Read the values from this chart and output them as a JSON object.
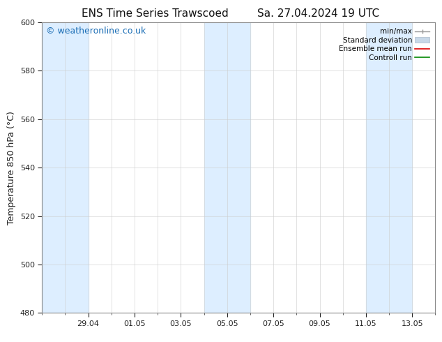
{
  "title_left": "ENS Time Series Trawscoed",
  "title_right": "Sa. 27.04.2024 19 UTC",
  "ylabel": "Temperature 850 hPa (°C)",
  "ylim": [
    480,
    600
  ],
  "yticks": [
    480,
    500,
    520,
    540,
    560,
    580,
    600
  ],
  "background_color": "#ffffff",
  "plot_bg_color": "#ffffff",
  "watermark": "© weatheronline.co.uk",
  "watermark_color": "#1a6db5",
  "x_tick_labels": [
    "29.04",
    "01.05",
    "03.05",
    "05.05",
    "07.05",
    "09.05",
    "11.05",
    "13.05"
  ],
  "legend_entries": [
    {
      "label": "min/max",
      "color": "#aaaaaa"
    },
    {
      "label": "Standard deviation",
      "color": "#c8d8e8"
    },
    {
      "label": "Ensemble mean run",
      "color": "#dd0000"
    },
    {
      "label": "Controll run",
      "color": "#008800"
    }
  ],
  "font_size_title": 11,
  "font_size_axis": 9,
  "font_size_tick": 8,
  "font_size_watermark": 9,
  "tick_color": "#222222",
  "axis_color": "#222222",
  "shaded_color": "#ddeeff",
  "spine_color": "#888888"
}
